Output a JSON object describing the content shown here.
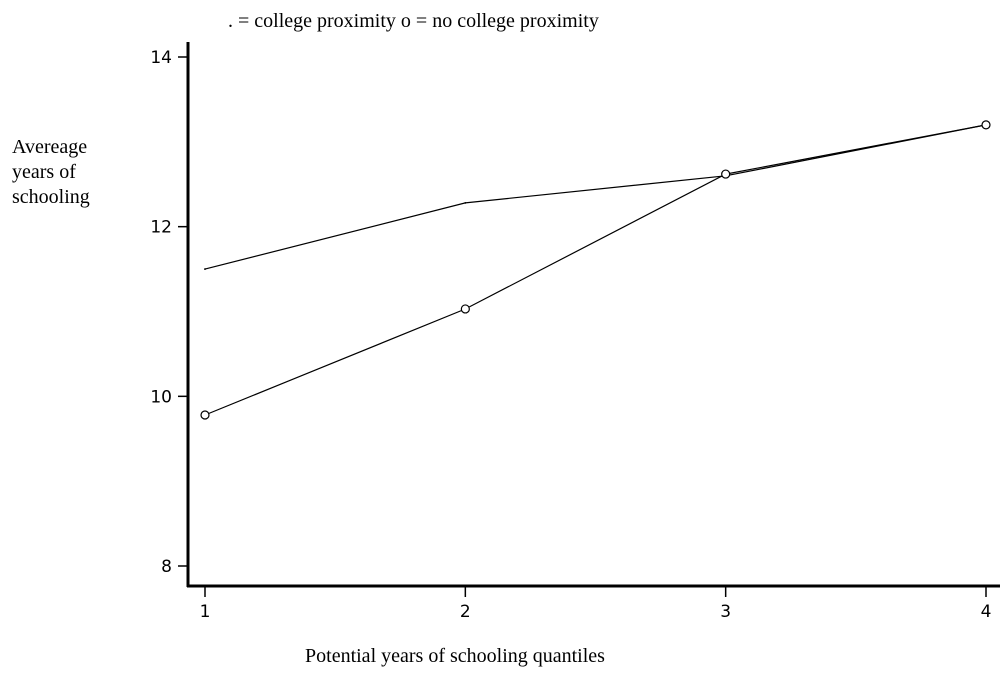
{
  "chart_data": {
    "type": "line",
    "legend_text": ". = college proximity  o = no college proximity",
    "legend_placement": "top",
    "xlabel": "Potential years of schooling quantiles",
    "ylabel_lines": [
      "Avereage",
      "years of",
      "schooling"
    ],
    "x": [
      1,
      2,
      3,
      4
    ],
    "xticks": [
      "1",
      "2",
      "3",
      "4"
    ],
    "ylim": [
      8,
      14
    ],
    "yticks": [
      8,
      10,
      12,
      14
    ],
    "grid": false,
    "series": [
      {
        "name": "college proximity",
        "marker": "none",
        "values": [
          11.5,
          12.28,
          12.6,
          13.2
        ]
      },
      {
        "name": "no college proximity",
        "marker": "circle",
        "values": [
          9.78,
          11.03,
          12.62,
          13.2
        ]
      }
    ]
  }
}
